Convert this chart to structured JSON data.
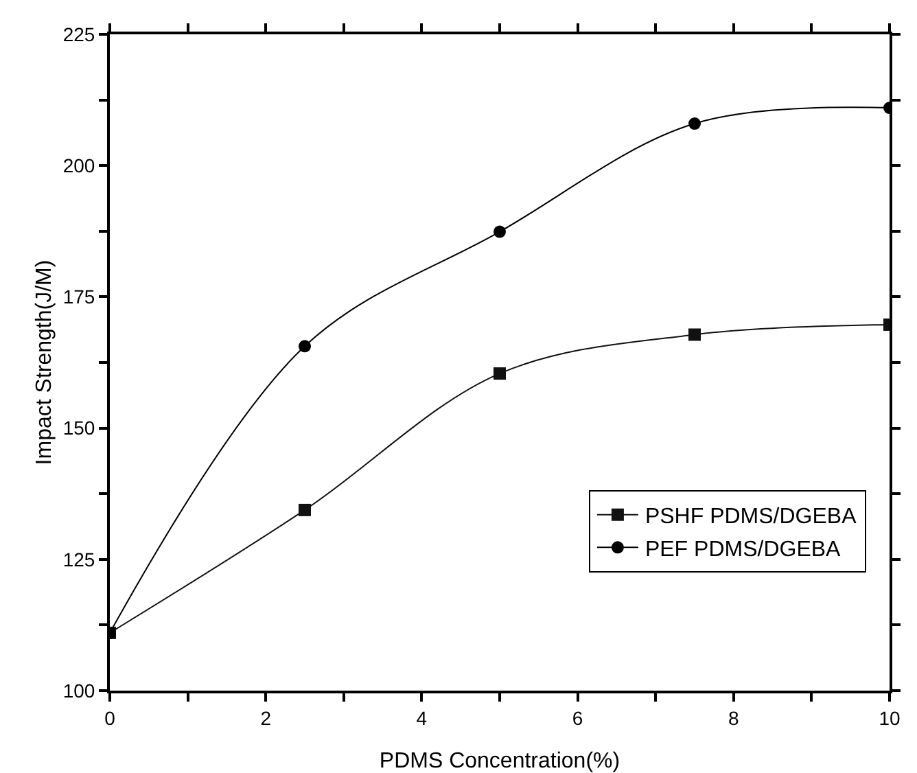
{
  "chart_data": {
    "type": "line",
    "xlabel": "PDMS Concentration(%)",
    "ylabel": "Impact Strength(J/M)",
    "x": [
      0,
      2.5,
      5,
      7.5,
      10
    ],
    "series": [
      {
        "name": "PSHF PDMS/DGEBA",
        "color": "#111111",
        "marker": "square",
        "values": [
          111,
          134.4,
          160.4,
          167.8,
          169.7
        ]
      },
      {
        "name": "PEF PDMS/DGEBA",
        "color": "#000000",
        "marker": "circle",
        "values": [
          111,
          165.6,
          187.4,
          208,
          211
        ]
      }
    ],
    "xlim": [
      0,
      10
    ],
    "xticks": [
      0,
      {
        "value": 1,
        "label": null
      },
      2,
      {
        "value": 3,
        "label": null
      },
      4,
      {
        "value": 5,
        "label": null
      },
      6,
      {
        "value": 7,
        "label": null
      },
      8,
      {
        "value": 9,
        "label": null
      },
      10
    ],
    "ylim": [
      100,
      225
    ],
    "yticks": [
      100,
      {
        "value": 112.5,
        "label": null
      },
      125,
      {
        "value": 137.5,
        "label": null
      },
      150,
      {
        "value": 162.5,
        "label": null
      },
      175,
      {
        "value": 187.5,
        "label": null
      },
      200,
      {
        "value": 212.5,
        "label": null
      },
      225
    ],
    "grid": false,
    "legend": "bottom right",
    "line_style": "solid"
  }
}
